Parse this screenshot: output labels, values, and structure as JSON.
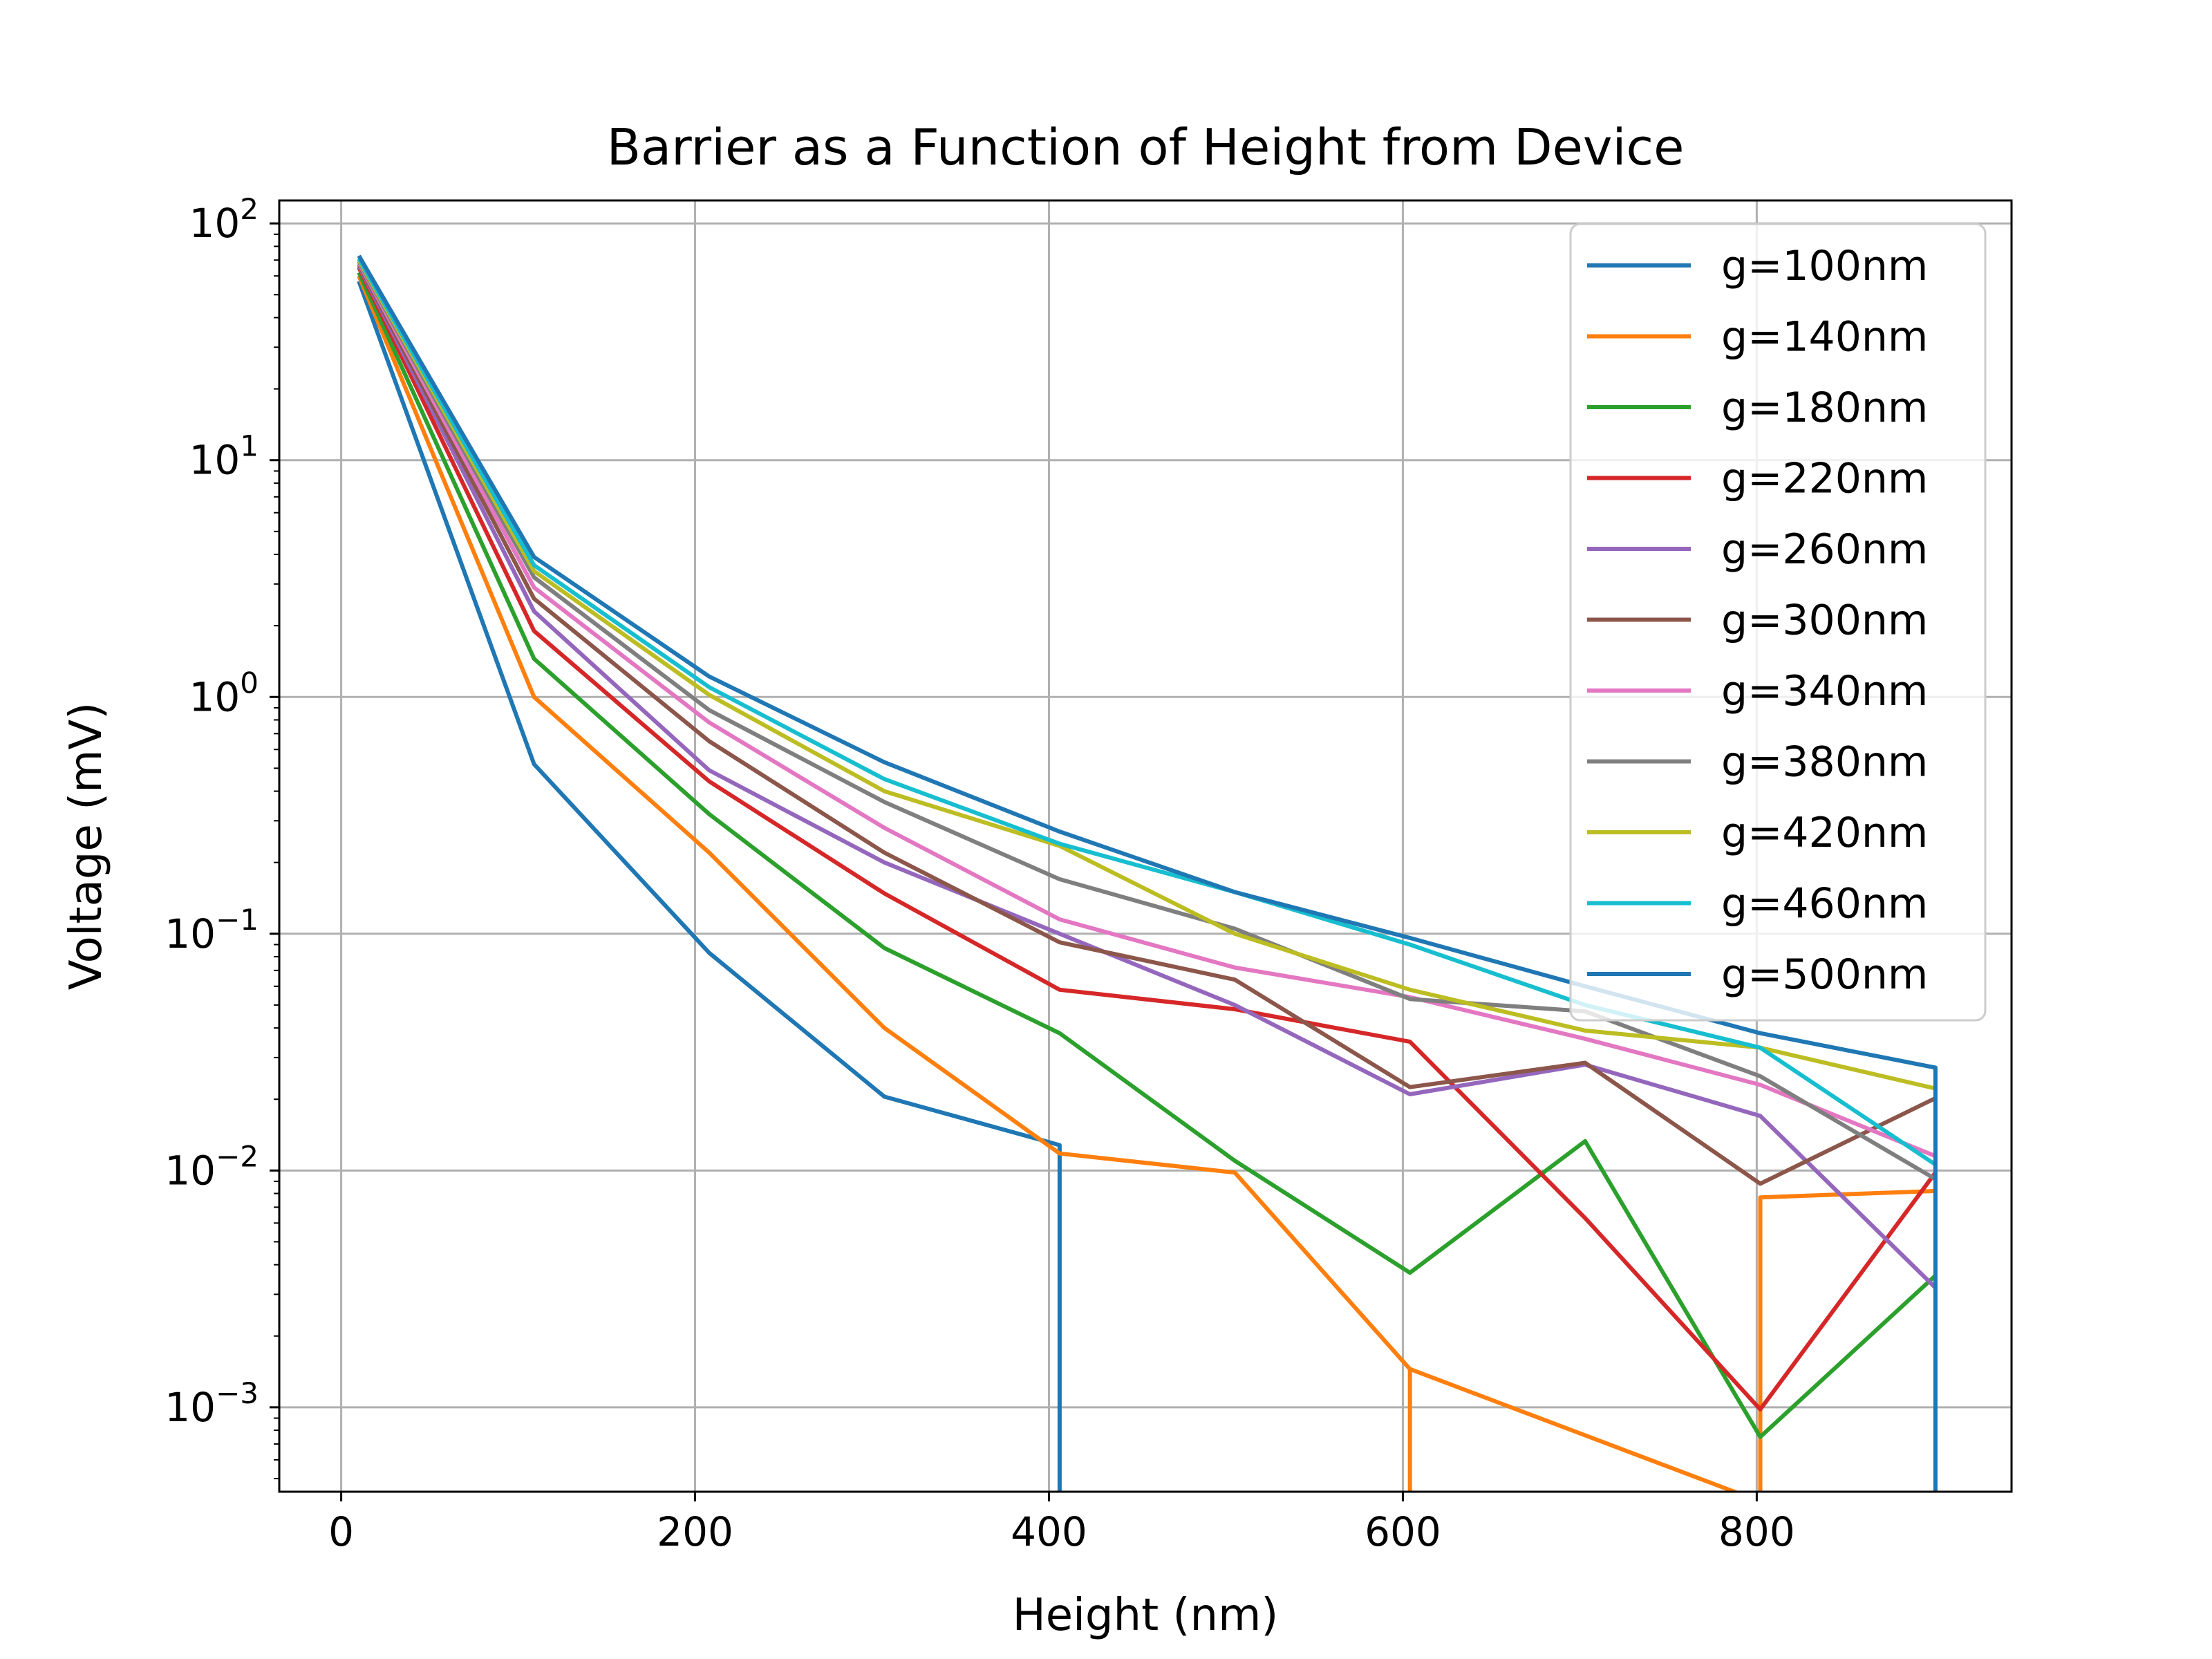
{
  "chart_data": {
    "type": "line",
    "title": "Barrier as a Function of Height from Device",
    "xlabel": "Height (nm)",
    "ylabel": "Voltage (mV)",
    "xlim": [
      -35,
      944
    ],
    "ylim": [
      0.00044,
      125
    ],
    "yscale": "log",
    "grid": true,
    "legend_position": "top-right",
    "x_ticks": [
      0,
      200,
      400,
      600,
      800
    ],
    "y_ticks": [
      {
        "value": 0.001,
        "base": "10",
        "exp": "−3"
      },
      {
        "value": 0.01,
        "base": "10",
        "exp": "−2"
      },
      {
        "value": 0.1,
        "base": "10",
        "exp": "−1"
      },
      {
        "value": 1,
        "base": "10",
        "exp": "0"
      },
      {
        "value": 10,
        "base": "10",
        "exp": "1"
      },
      {
        "value": 100,
        "base": "10",
        "exp": "2"
      }
    ],
    "series": [
      {
        "name": "g=100nm",
        "color": "#1f77b4",
        "points": [
          [
            10,
            57
          ],
          [
            109,
            0.52
          ],
          [
            208,
            0.083
          ],
          [
            307,
            0.0205
          ],
          [
            406,
            0.0128
          ],
          [
            406,
            0.0004
          ],
          [
            406,
            0.0128
          ]
        ]
      },
      {
        "name": "g=140nm",
        "color": "#ff7f0e",
        "points": [
          [
            10,
            60
          ],
          [
            109,
            1.0
          ],
          [
            208,
            0.22
          ],
          [
            307,
            0.04
          ],
          [
            406,
            0.0118
          ],
          [
            505,
            0.0098
          ],
          [
            604,
            0.00145
          ],
          [
            604,
            0.0004
          ],
          [
            604,
            0.00145
          ],
          [
            802,
            0.0004
          ],
          [
            802,
            0.0077
          ],
          [
            901,
            0.0082
          ]
        ]
      },
      {
        "name": "g=180nm",
        "color": "#2ca02c",
        "points": [
          [
            10,
            62
          ],
          [
            109,
            1.45
          ],
          [
            208,
            0.32
          ],
          [
            307,
            0.087
          ],
          [
            406,
            0.038
          ],
          [
            505,
            0.011
          ],
          [
            604,
            0.0037
          ],
          [
            703,
            0.0133
          ],
          [
            802,
            0.00075
          ],
          [
            901,
            0.0036
          ]
        ]
      },
      {
        "name": "g=220nm",
        "color": "#d62728",
        "points": [
          [
            10,
            65
          ],
          [
            109,
            1.9
          ],
          [
            208,
            0.44
          ],
          [
            307,
            0.148
          ],
          [
            406,
            0.058
          ],
          [
            505,
            0.048
          ],
          [
            604,
            0.035
          ],
          [
            703,
            0.0063
          ],
          [
            802,
            0.00098
          ],
          [
            901,
            0.0098
          ]
        ]
      },
      {
        "name": "g=260nm",
        "color": "#9467bd",
        "points": [
          [
            10,
            66
          ],
          [
            109,
            2.3
          ],
          [
            208,
            0.49
          ],
          [
            307,
            0.2
          ],
          [
            406,
            0.1
          ],
          [
            505,
            0.05
          ],
          [
            604,
            0.021
          ],
          [
            703,
            0.028
          ],
          [
            802,
            0.017
          ],
          [
            901,
            0.0032
          ]
        ]
      },
      {
        "name": "g=300nm",
        "color": "#8c564b",
        "points": [
          [
            10,
            67
          ],
          [
            109,
            2.6
          ],
          [
            208,
            0.65
          ],
          [
            307,
            0.22
          ],
          [
            406,
            0.092
          ],
          [
            505,
            0.064
          ],
          [
            604,
            0.0225
          ],
          [
            703,
            0.0285
          ],
          [
            802,
            0.0088
          ],
          [
            901,
            0.0202
          ]
        ]
      },
      {
        "name": "g=340nm",
        "color": "#e377c2",
        "points": [
          [
            10,
            68
          ],
          [
            109,
            2.9
          ],
          [
            208,
            0.78
          ],
          [
            307,
            0.28
          ],
          [
            406,
            0.115
          ],
          [
            505,
            0.072
          ],
          [
            604,
            0.054
          ],
          [
            703,
            0.036
          ],
          [
            802,
            0.023
          ],
          [
            901,
            0.0115
          ]
        ]
      },
      {
        "name": "g=380nm",
        "color": "#7f7f7f",
        "points": [
          [
            10,
            69
          ],
          [
            109,
            3.2
          ],
          [
            208,
            0.88
          ],
          [
            307,
            0.36
          ],
          [
            406,
            0.17
          ],
          [
            505,
            0.105
          ],
          [
            604,
            0.053
          ],
          [
            703,
            0.047
          ],
          [
            802,
            0.025
          ],
          [
            901,
            0.0092
          ]
        ]
      },
      {
        "name": "g=420nm",
        "color": "#bcbd22",
        "points": [
          [
            10,
            70
          ],
          [
            109,
            3.4
          ],
          [
            208,
            1.02
          ],
          [
            307,
            0.4
          ],
          [
            406,
            0.235
          ],
          [
            505,
            0.1
          ],
          [
            604,
            0.058
          ],
          [
            703,
            0.039
          ],
          [
            802,
            0.033
          ],
          [
            901,
            0.0222
          ]
        ]
      },
      {
        "name": "g=460nm",
        "color": "#17becf",
        "points": [
          [
            10,
            71
          ],
          [
            109,
            3.6
          ],
          [
            208,
            1.1
          ],
          [
            307,
            0.45
          ],
          [
            406,
            0.24
          ],
          [
            505,
            0.15
          ],
          [
            604,
            0.09
          ],
          [
            703,
            0.05
          ],
          [
            802,
            0.033
          ],
          [
            901,
            0.0106
          ]
        ]
      },
      {
        "name": "g=500nm",
        "color": "#1f77b4",
        "points": [
          [
            10,
            73
          ],
          [
            109,
            3.9
          ],
          [
            208,
            1.22
          ],
          [
            307,
            0.53
          ],
          [
            406,
            0.27
          ],
          [
            505,
            0.15
          ],
          [
            604,
            0.096
          ],
          [
            703,
            0.06
          ],
          [
            802,
            0.038
          ],
          [
            901,
            0.0272
          ],
          [
            901,
            0.0004
          ],
          [
            901,
            0.0272
          ]
        ]
      }
    ]
  }
}
